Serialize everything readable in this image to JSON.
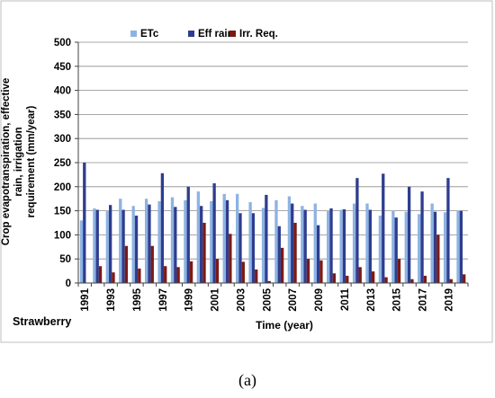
{
  "caption": "(a)",
  "chart_data": {
    "type": "bar",
    "ylabel": "Crop evapotranspiration, effective rain, irrigation requirement (mm/year)",
    "xlabel": "Time (year)",
    "panel_label": "Strawberry",
    "ylim": [
      0,
      500
    ],
    "yticks": [
      0,
      50,
      100,
      150,
      200,
      250,
      300,
      350,
      400,
      450,
      500
    ],
    "grid": true,
    "legend_position": "top",
    "categories": [
      "1991",
      "1992",
      "1993",
      "1994",
      "1995",
      "1996",
      "1997",
      "1998",
      "1999",
      "2000",
      "2001",
      "2002",
      "2003",
      "2004",
      "2005",
      "2006",
      "2007",
      "2008",
      "2009",
      "2010",
      "2011",
      "2012",
      "2013",
      "2014",
      "2015",
      "2016",
      "2017",
      "2018",
      "2019",
      "2020"
    ],
    "xtick_labels": [
      "1991",
      "1993",
      "1995",
      "1997",
      "1999",
      "2001",
      "2003",
      "2005",
      "2007",
      "2009",
      "2011",
      "2013",
      "2015",
      "2017",
      "2019"
    ],
    "series": [
      {
        "name": "ETc",
        "color": "#8db3e2",
        "values": [
          130,
          155,
          150,
          175,
          160,
          175,
          170,
          178,
          172,
          190,
          170,
          185,
          185,
          168,
          156,
          172,
          180,
          160,
          165,
          150,
          152,
          165,
          165,
          140,
          150,
          148,
          143,
          165,
          147,
          150
        ]
      },
      {
        "name": "Eff rain",
        "color": "#2e3d8f",
        "values": [
          250,
          152,
          162,
          152,
          140,
          163,
          228,
          158,
          200,
          160,
          207,
          172,
          145,
          145,
          183,
          118,
          165,
          152,
          120,
          155,
          153,
          218,
          152,
          227,
          136,
          200,
          190,
          148,
          218,
          150
        ]
      },
      {
        "name": "Irr. Req.",
        "color": "#7b1a14",
        "values": [
          0,
          35,
          22,
          77,
          30,
          77,
          35,
          33,
          45,
          125,
          50,
          102,
          44,
          28,
          4,
          73,
          125,
          50,
          47,
          20,
          15,
          33,
          24,
          12,
          50,
          8,
          15,
          100,
          8,
          18
        ]
      }
    ]
  }
}
